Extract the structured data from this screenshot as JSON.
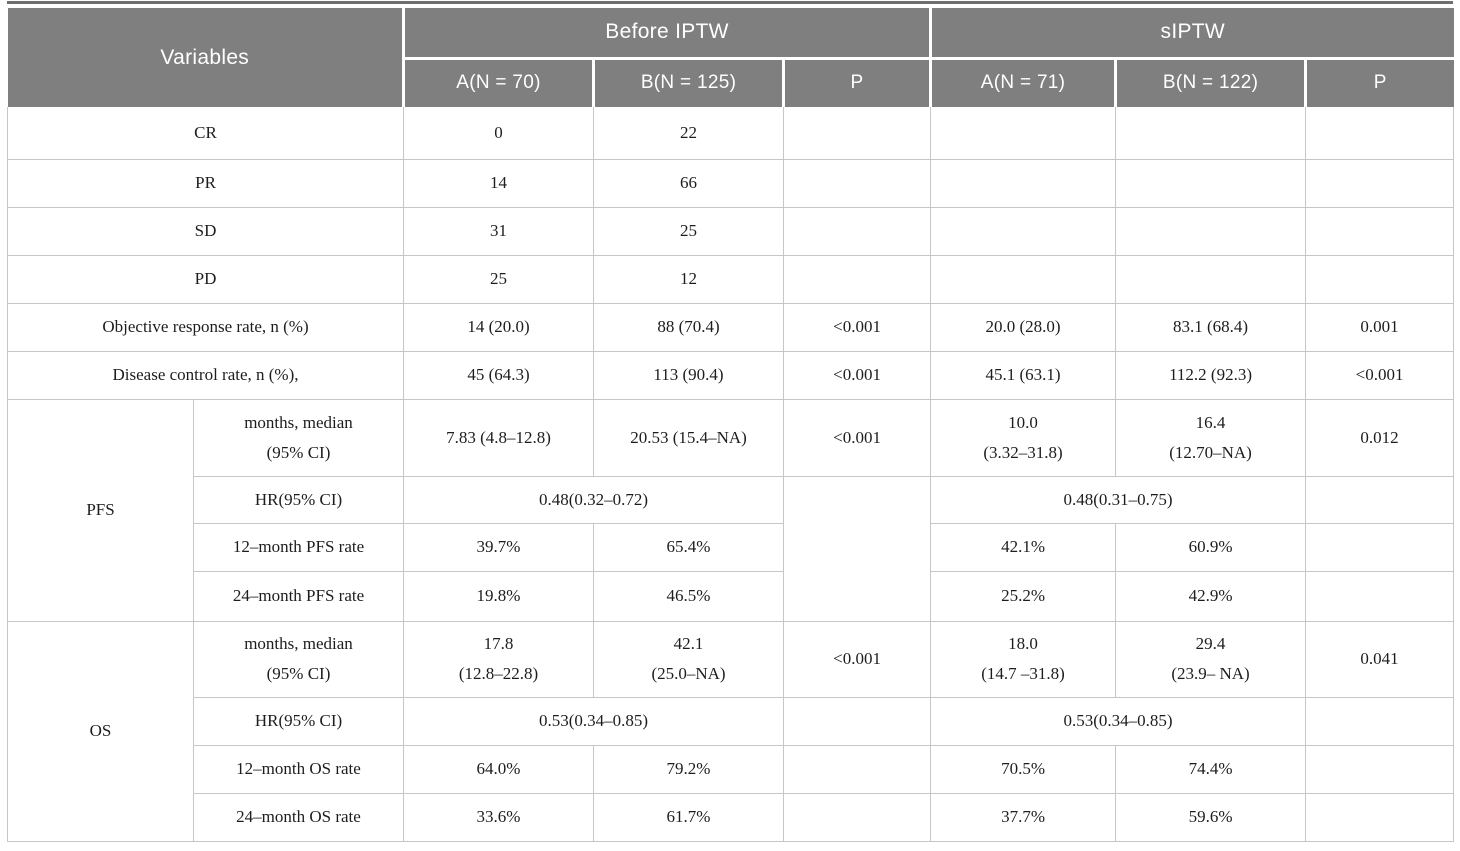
{
  "colors": {
    "header_bg": "#7e7f7e",
    "header_text": "#ffffff",
    "top_rule": "#6f6f6f",
    "grid_line": "#c6c6c6",
    "body_text": "#1d1d1d"
  },
  "header": {
    "variables": "Variables",
    "before_group": "Before IPTW",
    "siptw_group": "sIPTW",
    "before_cols": [
      "A(N = 70)",
      "B(N = 125)",
      "P"
    ],
    "siptw_cols": [
      "A(N = 71)",
      "B(N = 122)",
      "P"
    ]
  },
  "simple_rows": [
    {
      "label": "CR",
      "a1": "0",
      "b1": "22",
      "p1": "",
      "a2": "",
      "b2": "",
      "p2": ""
    },
    {
      "label": "PR",
      "a1": "14",
      "b1": "66",
      "p1": "",
      "a2": "",
      "b2": "",
      "p2": ""
    },
    {
      "label": "SD",
      "a1": "31",
      "b1": "25",
      "p1": "",
      "a2": "",
      "b2": "",
      "p2": ""
    },
    {
      "label": "PD",
      "a1": "25",
      "b1": "12",
      "p1": "",
      "a2": "",
      "b2": "",
      "p2": ""
    },
    {
      "label": "Objective response rate, n (%)",
      "a1": "14 (20.0)",
      "b1": "88 (70.4)",
      "p1": "<0.001",
      "a2": "20.0 (28.0)",
      "b2": "83.1 (68.4)",
      "p2": "0.001"
    },
    {
      "label": "Disease control rate, n (%),",
      "a1": "45 (64.3)",
      "b1": "113 (90.4)",
      "p1": "<0.001",
      "a2": "45.1 (63.1)",
      "b2": "112.2 (92.3)",
      "p2": "<0.001"
    }
  ],
  "pfs": {
    "group_label": "PFS",
    "months": {
      "label": [
        "months, median",
        "(95% CI)"
      ],
      "a1": "7.83 (4.8–12.8)",
      "b1": "20.53 (15.4–NA)",
      "p1": "<0.001",
      "a2": [
        "10.0",
        "(3.32–31.8)"
      ],
      "b2": [
        "16.4",
        "(12.70–NA)"
      ],
      "p2": "0.012"
    },
    "hr": {
      "label": "HR(95% CI)",
      "before": "0.48(0.32–0.72)",
      "siptw": "0.48(0.31–0.75)"
    },
    "m12": {
      "label": "12–month PFS rate",
      "a1": "39.7%",
      "b1": "65.4%",
      "a2": "42.1%",
      "b2": "60.9%"
    },
    "m24": {
      "label": "24–month PFS rate",
      "a1": "19.8%",
      "b1": "46.5%",
      "a2": "25.2%",
      "b2": "42.9%"
    }
  },
  "os": {
    "group_label": "OS",
    "months": {
      "label": [
        "months, median",
        "(95% CI)"
      ],
      "a1": [
        "17.8",
        "(12.8–22.8)"
      ],
      "b1": [
        "42.1",
        "(25.0–NA)"
      ],
      "p1": "<0.001",
      "a2": [
        "18.0",
        "(14.7 –31.8)"
      ],
      "b2": [
        "29.4",
        "(23.9– NA)"
      ],
      "p2": "0.041"
    },
    "hr": {
      "label": "HR(95% CI)",
      "before": "0.53(0.34–0.85)",
      "siptw": "0.53(0.34–0.85)"
    },
    "m12": {
      "label": "12–month OS rate",
      "a1": "64.0%",
      "b1": "79.2%",
      "a2": "70.5%",
      "b2": "74.4%"
    },
    "m24": {
      "label": "24–month OS rate",
      "a1": "33.6%",
      "b1": "61.7%",
      "a2": "37.7%",
      "b2": "59.6%"
    }
  }
}
